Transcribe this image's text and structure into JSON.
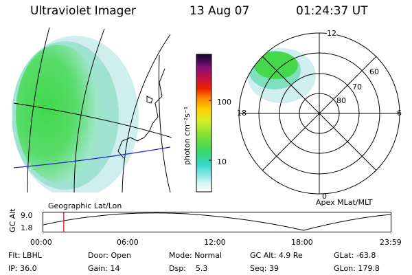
{
  "header": {
    "instrument": "Ultraviolet Imager",
    "date": "13 Aug 07",
    "time": "01:24:37 UT"
  },
  "geo_panel": {
    "label": "Geographic Lat/Lon"
  },
  "colorbar": {
    "unit_label": "photon cm⁻²s⁻¹",
    "ticks": [
      "100",
      "10"
    ]
  },
  "polar_panel": {
    "label": "Apex MLat/MLT",
    "mlt_labels": {
      "top": "12",
      "left": "18",
      "right": "6",
      "bottom": "0"
    },
    "lat_labels": [
      "60",
      "70",
      "80"
    ]
  },
  "altitude_plot": {
    "axis_label": "GC Alt",
    "y_ticks": [
      "9.0",
      "1.8"
    ],
    "x_ticks": [
      "00:00",
      "06:00",
      "12:00",
      "18:00",
      "23:59"
    ],
    "marker_time_fraction": 0.059
  },
  "info": {
    "filter_label": "Flt:",
    "filter_value": "LBHL",
    "ip_label": "IP:",
    "ip_value": "36.0",
    "door_label": "Door:",
    "door_value": "Open",
    "gain_label": "Gain:",
    "gain_value": "14",
    "mode_label": "Mode:",
    "mode_value": "Normal",
    "dsp_label": "Dsp:",
    "dsp_value": "5.3",
    "gcalt_label": "GC Alt:",
    "gcalt_value": "4.9 Re",
    "seq_label": "Seq:",
    "seq_value": "39",
    "glat_label": "GLat:",
    "glat_value": "-63.8",
    "glon_label": "GLon:",
    "glon_value": "179.8"
  },
  "colors": {
    "aurora_green": "#44dd44",
    "aurora_cyan": "#aaeeee",
    "track_blue": "#2222cc",
    "marker_red": "#dd0000"
  }
}
